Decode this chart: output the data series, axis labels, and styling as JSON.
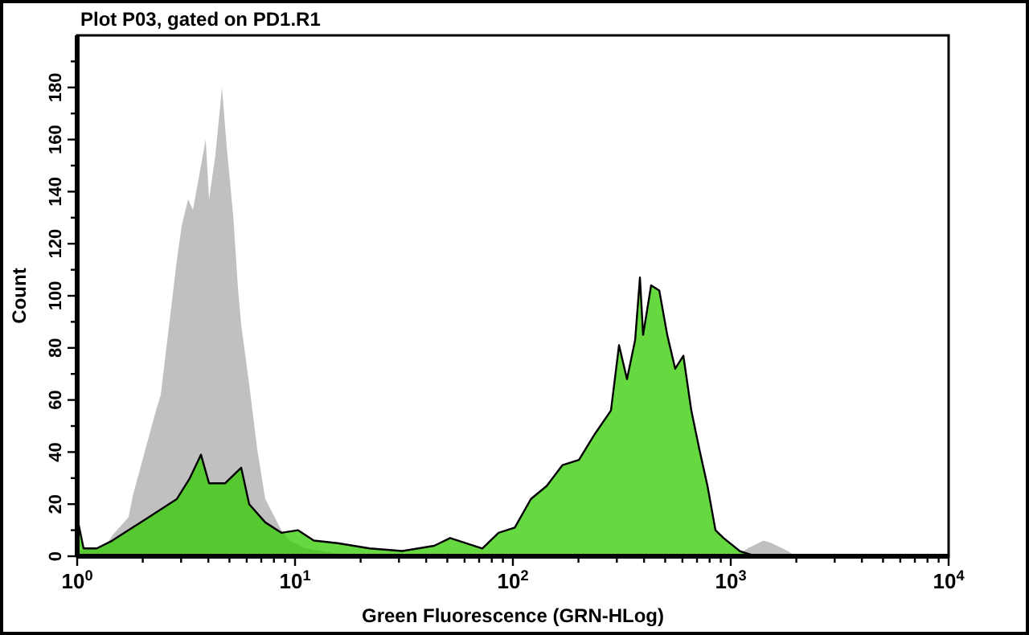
{
  "chart_data": {
    "type": "area",
    "title": "Plot P03, gated on PD1.R1",
    "xlabel": "Green Fluorescence (GRN-HLog)",
    "ylabel": "Count",
    "log": "x",
    "xlim": [
      1,
      10000
    ],
    "xticks": [
      {
        "value": 1,
        "label": "10$^{0}$"
      },
      {
        "value": 2,
        "label": null
      },
      {
        "value": 3,
        "label": null
      },
      {
        "value": 4,
        "label": null
      },
      {
        "value": 5,
        "label": null
      },
      {
        "value": 6,
        "label": null
      },
      {
        "value": 7,
        "label": null
      },
      {
        "value": 8,
        "label": null
      },
      {
        "value": 9,
        "label": null
      },
      {
        "value": 10,
        "label": "10$^{1}$"
      },
      {
        "value": 20,
        "label": null
      },
      {
        "value": 30,
        "label": null
      },
      {
        "value": 40,
        "label": null
      },
      {
        "value": 50,
        "label": null
      },
      {
        "value": 60,
        "label": null
      },
      {
        "value": 70,
        "label": null
      },
      {
        "value": 80,
        "label": null
      },
      {
        "value": 90,
        "label": null
      },
      {
        "value": 100,
        "label": "10$^{2}$"
      },
      {
        "value": 200,
        "label": null
      },
      {
        "value": 300,
        "label": null
      },
      {
        "value": 400,
        "label": null
      },
      {
        "value": 500,
        "label": null
      },
      {
        "value": 600,
        "label": null
      },
      {
        "value": 700,
        "label": null
      },
      {
        "value": 800,
        "label": null
      },
      {
        "value": 900,
        "label": null
      },
      {
        "value": 1000,
        "label": "10$^{3}$"
      },
      {
        "value": 2000,
        "label": null
      },
      {
        "value": 3000,
        "label": null
      },
      {
        "value": 4000,
        "label": null
      },
      {
        "value": 5000,
        "label": null
      },
      {
        "value": 6000,
        "label": null
      },
      {
        "value": 7000,
        "label": null
      },
      {
        "value": 8000,
        "label": null
      },
      {
        "value": 9000,
        "label": null
      },
      {
        "value": 10000,
        "label": "10$^{4}$"
      }
    ],
    "ylim": [
      0,
      200
    ],
    "yticks": [
      0,
      {
        "value": 10,
        "label": null
      },
      20,
      {
        "value": 30,
        "label": null
      },
      40,
      {
        "value": 50,
        "label": null
      },
      60,
      {
        "value": 70,
        "label": null
      },
      80,
      {
        "value": 90,
        "label": null
      },
      100,
      {
        "value": 110,
        "label": null
      },
      120,
      {
        "value": 130,
        "label": null
      },
      140,
      {
        "value": 150,
        "label": null
      },
      160,
      {
        "value": 170,
        "label": null
      },
      180,
      {
        "value": 190,
        "label": null
      }
    ],
    "series": [
      {
        "color": "#c0c0c0",
        "x": [
          1,
          1.23,
          1.38,
          1.45,
          1.72,
          1.81,
          2.04,
          2.3,
          2.42,
          2.87,
          3.02,
          3.23,
          3.4,
          3.89,
          4.03,
          4.31,
          4.62,
          4.86,
          5.2,
          5.47,
          5.66,
          6.16,
          6.71,
          7.3,
          7.95,
          8.65,
          9.42,
          11.2,
          15.7,
          20,
          1000,
          1099,
          1194,
          1416,
          1542,
          1828,
          1991
        ],
        "values": [
          2,
          3,
          5,
          8,
          15,
          24,
          40,
          56,
          62,
          114,
          127,
          137,
          133,
          160,
          137,
          154,
          180,
          157,
          131,
          103,
          89,
          66,
          41,
          22,
          16,
          10,
          6,
          3,
          1,
          0,
          0,
          1,
          3,
          6,
          5,
          2,
          0
        ]
      },
      {
        "color": "#33cc00",
        "x": [
          1,
          1.07,
          1.23,
          1.45,
          1.72,
          2.04,
          2.42,
          2.87,
          3.29,
          3.7,
          4.03,
          4.77,
          5.66,
          6.16,
          7.3,
          8.65,
          10.3,
          12.2,
          15.7,
          22,
          31,
          43.5,
          51.5,
          61.1,
          72.4,
          85.9,
          102,
          121,
          143,
          169,
          201,
          238,
          282,
          307,
          334,
          364,
          383,
          396,
          431,
          470,
          511,
          556,
          606,
          659,
          718,
          782,
          851,
          927,
          1099,
          1300
        ],
        "values": [
          15,
          3,
          3,
          6,
          10,
          14,
          18,
          22,
          30,
          39,
          28,
          28,
          34,
          20,
          13,
          9,
          10,
          6,
          5,
          3,
          2,
          4,
          7,
          5,
          3,
          9,
          11,
          22,
          27,
          35,
          37,
          47,
          56,
          81,
          68,
          83,
          107,
          85,
          104,
          102,
          85,
          72,
          77,
          56,
          41,
          27,
          10,
          7,
          2,
          0
        ]
      }
    ]
  }
}
